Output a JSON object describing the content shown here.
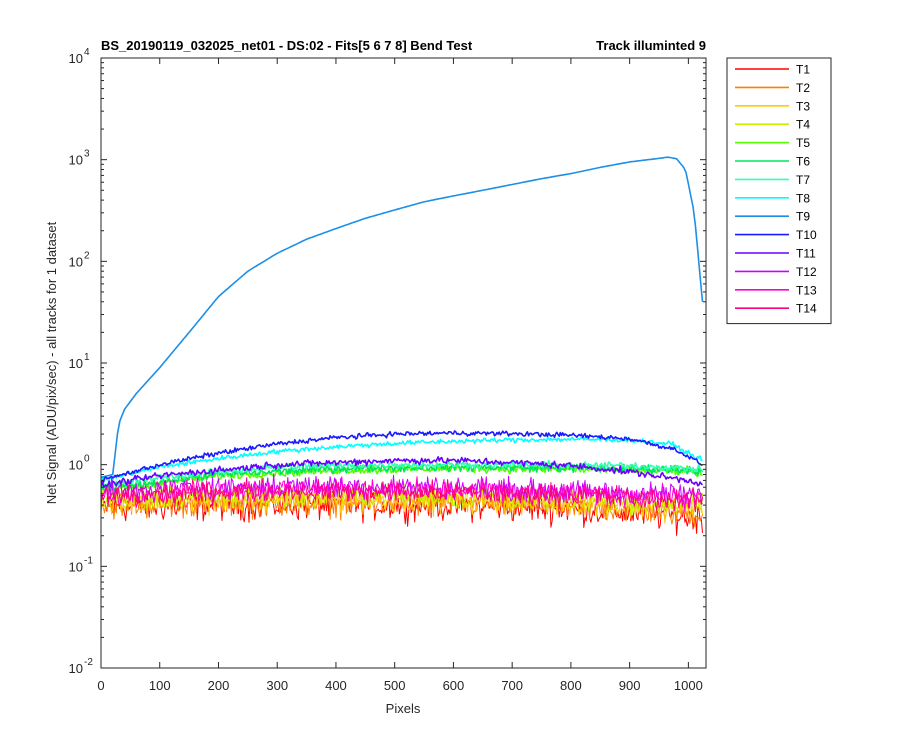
{
  "chart_data": {
    "type": "line",
    "title_left": "BS_20190119_032025_net01 - DS:02 - Fits[5  6  7  8]   Bend Test",
    "title_right": "Track illuminted 9",
    "xlabel": "Pixels",
    "ylabel": "Net Signal (ADU/pix/sec) - all tracks for 1 dataset",
    "xlim": [
      0,
      1030
    ],
    "ylim": [
      0.01,
      10000
    ],
    "yscale": "log",
    "x_ticks": [
      0,
      100,
      200,
      300,
      400,
      500,
      600,
      700,
      800,
      900,
      1000
    ],
    "x_tick_labels": [
      "0",
      "100",
      "200",
      "300",
      "400",
      "500",
      "600",
      "700",
      "800",
      "900",
      "1000"
    ],
    "y_ticks": [
      {
        "value": 0.01,
        "base": "10",
        "exp": "-2"
      },
      {
        "value": 0.1,
        "base": "10",
        "exp": "-1"
      },
      {
        "value": 1,
        "base": "10",
        "exp": "0"
      },
      {
        "value": 10,
        "base": "10",
        "exp": "1"
      },
      {
        "value": 100,
        "base": "10",
        "exp": "2"
      },
      {
        "value": 1000,
        "base": "10",
        "exp": "3"
      },
      {
        "value": 10000,
        "base": "10",
        "exp": "4"
      }
    ],
    "legend_position": "outside-right",
    "series": [
      {
        "name": "T1",
        "color": "#ff0000",
        "noise": 0.22,
        "points": [
          [
            0,
            0.38
          ],
          [
            200,
            0.4
          ],
          [
            400,
            0.4
          ],
          [
            600,
            0.4
          ],
          [
            800,
            0.37
          ],
          [
            1024,
            0.3
          ]
        ]
      },
      {
        "name": "T2",
        "color": "#ff7f00",
        "noise": 0.2,
        "points": [
          [
            0,
            0.4
          ],
          [
            200,
            0.42
          ],
          [
            400,
            0.42
          ],
          [
            600,
            0.42
          ],
          [
            800,
            0.39
          ],
          [
            1024,
            0.33
          ]
        ]
      },
      {
        "name": "T3",
        "color": "#ffcc00",
        "noise": 0.18,
        "points": [
          [
            0,
            0.42
          ],
          [
            200,
            0.45
          ],
          [
            400,
            0.45
          ],
          [
            600,
            0.44
          ],
          [
            800,
            0.42
          ],
          [
            1024,
            0.36
          ]
        ]
      },
      {
        "name": "T4",
        "color": "#c8f000",
        "noise": 0.17,
        "points": [
          [
            0,
            0.45
          ],
          [
            200,
            0.48
          ],
          [
            400,
            0.49
          ],
          [
            600,
            0.48
          ],
          [
            800,
            0.45
          ],
          [
            1024,
            0.4
          ]
        ]
      },
      {
        "name": "T5",
        "color": "#55ff00",
        "noise": 0.06,
        "points": [
          [
            0,
            0.55
          ],
          [
            200,
            0.78
          ],
          [
            400,
            0.88
          ],
          [
            600,
            0.92
          ],
          [
            800,
            0.9
          ],
          [
            1000,
            0.86
          ],
          [
            1024,
            0.8
          ]
        ]
      },
      {
        "name": "T6",
        "color": "#00e65c",
        "noise": 0.06,
        "points": [
          [
            0,
            0.58
          ],
          [
            200,
            0.8
          ],
          [
            400,
            0.92
          ],
          [
            600,
            0.95
          ],
          [
            800,
            0.93
          ],
          [
            1000,
            0.9
          ],
          [
            1024,
            0.85
          ]
        ]
      },
      {
        "name": "T7",
        "color": "#33ffb4",
        "noise": 0.05,
        "points": [
          [
            0,
            0.62
          ],
          [
            100,
            0.75
          ],
          [
            300,
            0.95
          ],
          [
            500,
            1.0
          ],
          [
            700,
            1.0
          ],
          [
            900,
            0.98
          ],
          [
            1024,
            0.9
          ]
        ]
      },
      {
        "name": "T8",
        "color": "#00ffff",
        "noise": 0.035,
        "points": [
          [
            0,
            0.7
          ],
          [
            100,
            0.95
          ],
          [
            200,
            1.15
          ],
          [
            300,
            1.35
          ],
          [
            400,
            1.5
          ],
          [
            500,
            1.62
          ],
          [
            600,
            1.7
          ],
          [
            700,
            1.75
          ],
          [
            800,
            1.78
          ],
          [
            900,
            1.75
          ],
          [
            970,
            1.6
          ],
          [
            1024,
            1.1
          ]
        ]
      },
      {
        "name": "T9",
        "color": "#1e8fe6",
        "noise": 0.0,
        "points": [
          [
            0,
            0.75
          ],
          [
            20,
            0.8
          ],
          [
            30,
            2.5
          ],
          [
            40,
            3.5
          ],
          [
            60,
            5
          ],
          [
            100,
            9
          ],
          [
            150,
            20
          ],
          [
            200,
            45
          ],
          [
            250,
            80
          ],
          [
            300,
            120
          ],
          [
            350,
            165
          ],
          [
            400,
            210
          ],
          [
            450,
            265
          ],
          [
            500,
            320
          ],
          [
            550,
            385
          ],
          [
            600,
            440
          ],
          [
            650,
            500
          ],
          [
            700,
            570
          ],
          [
            750,
            650
          ],
          [
            800,
            730
          ],
          [
            850,
            840
          ],
          [
            900,
            950
          ],
          [
            950,
            1030
          ],
          [
            965,
            1060
          ],
          [
            980,
            1020
          ],
          [
            995,
            800
          ],
          [
            1010,
            300
          ],
          [
            1024,
            40
          ]
        ]
      },
      {
        "name": "T10",
        "color": "#1a1aff",
        "noise": 0.035,
        "points": [
          [
            0,
            0.7
          ],
          [
            100,
            1.0
          ],
          [
            200,
            1.3
          ],
          [
            300,
            1.6
          ],
          [
            400,
            1.85
          ],
          [
            500,
            2.0
          ],
          [
            600,
            2.05
          ],
          [
            700,
            2.02
          ],
          [
            800,
            1.95
          ],
          [
            900,
            1.8
          ],
          [
            980,
            1.4
          ],
          [
            1024,
            1.0
          ]
        ]
      },
      {
        "name": "T11",
        "color": "#6a00ff",
        "noise": 0.05,
        "points": [
          [
            0,
            0.62
          ],
          [
            100,
            0.78
          ],
          [
            300,
            1.0
          ],
          [
            500,
            1.1
          ],
          [
            600,
            1.1
          ],
          [
            700,
            1.05
          ],
          [
            800,
            0.98
          ],
          [
            900,
            0.85
          ],
          [
            1000,
            0.7
          ],
          [
            1024,
            0.65
          ]
        ]
      },
      {
        "name": "T12",
        "color": "#cc00ff",
        "noise": 0.16,
        "points": [
          [
            0,
            0.52
          ],
          [
            200,
            0.6
          ],
          [
            400,
            0.62
          ],
          [
            600,
            0.6
          ],
          [
            800,
            0.55
          ],
          [
            1024,
            0.5
          ]
        ]
      },
      {
        "name": "T13",
        "color": "#ff00d4",
        "noise": 0.16,
        "points": [
          [
            0,
            0.5
          ],
          [
            200,
            0.58
          ],
          [
            400,
            0.58
          ],
          [
            600,
            0.56
          ],
          [
            800,
            0.52
          ],
          [
            1024,
            0.47
          ]
        ]
      },
      {
        "name": "T14",
        "color": "#ff0080",
        "noise": 0.16,
        "points": [
          [
            0,
            0.48
          ],
          [
            200,
            0.55
          ],
          [
            400,
            0.55
          ],
          [
            600,
            0.53
          ],
          [
            800,
            0.5
          ],
          [
            1024,
            0.44
          ]
        ]
      }
    ]
  }
}
